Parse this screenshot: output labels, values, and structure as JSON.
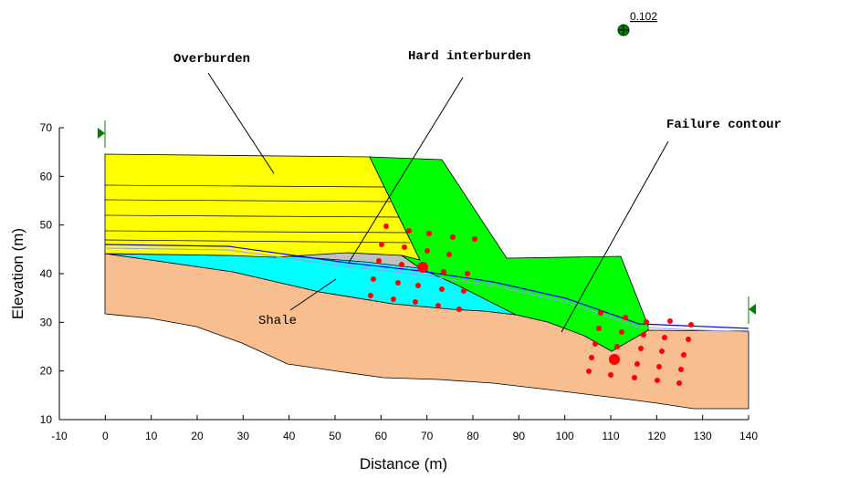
{
  "chart_data": {
    "type": "diagram",
    "xlabel": "Distance (m)",
    "ylabel": "Elevation (m)",
    "xlim": [
      -10,
      140
    ],
    "ylim": [
      10,
      70
    ],
    "x_ticks": [
      -10,
      0,
      10,
      20,
      30,
      40,
      50,
      60,
      70,
      80,
      90,
      100,
      110,
      120,
      130,
      140
    ],
    "y_ticks": [
      10,
      20,
      30,
      40,
      50,
      60,
      70
    ],
    "factor_of_safety": "0.102",
    "annotations": {
      "overburden": "Overburden",
      "hard_interburden": "Hard interburden",
      "failure_contour": "Failure contour",
      "shale": "Shale"
    },
    "colors": {
      "overburden": "#ffff00",
      "interburden": "#00ff00",
      "shale": "#00ffff",
      "bedrock": "#f9be8f",
      "weak_layer": "#c0c0c0",
      "water_table": "#0000ff",
      "grid_points": "#ff0000",
      "marker": "#008000"
    }
  }
}
